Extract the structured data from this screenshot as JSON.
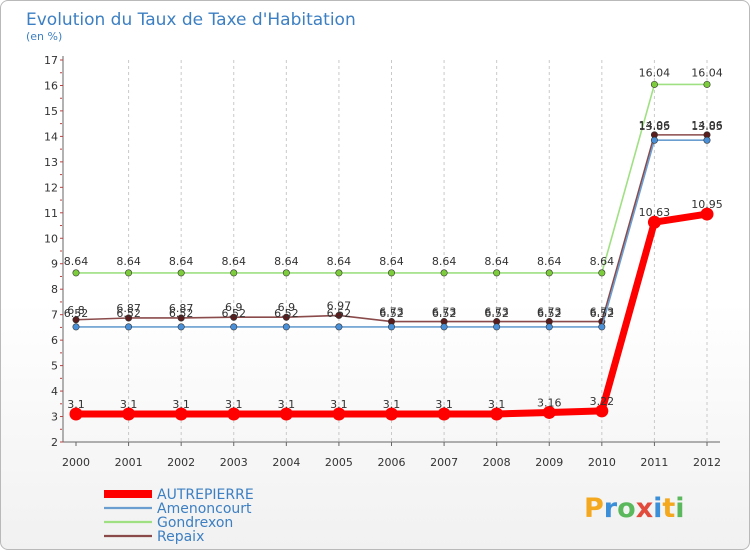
{
  "chart_data": {
    "type": "line",
    "title": "Evolution du Taux de Taxe d'Habitation",
    "subtitle": "(en %)",
    "xlabel": "",
    "ylabel": "",
    "x": [
      "2000",
      "2001",
      "2002",
      "2003",
      "2004",
      "2005",
      "2006",
      "2007",
      "2008",
      "2009",
      "2010",
      "2011",
      "2012"
    ],
    "ylim": [
      2,
      17
    ],
    "yticks": [
      "2",
      "3",
      "4",
      "5",
      "6",
      "7",
      "8",
      "9",
      "10",
      "11",
      "12",
      "13",
      "14",
      "15",
      "16",
      "17"
    ],
    "grid": "vertical dashed",
    "legend": "bottom-left",
    "series": [
      {
        "name": "AUTREPIERRE",
        "color": "#ff0000",
        "values": [
          3.1,
          3.1,
          3.1,
          3.1,
          3.1,
          3.1,
          3.1,
          3.1,
          3.1,
          3.16,
          3.22,
          10.63,
          10.95
        ],
        "labels": [
          "3.1",
          "3.1",
          "3.1",
          "3.1",
          "3.1",
          "3.1",
          "3.1",
          "3.1",
          "3.1",
          "3.16",
          "3.22",
          "10.63",
          "10.95"
        ]
      },
      {
        "name": "Amenoncourt",
        "color": "#6a9ed0",
        "values": [
          6.52,
          6.52,
          6.52,
          6.52,
          6.52,
          6.52,
          6.52,
          6.52,
          6.52,
          6.52,
          6.52,
          13.85,
          13.85
        ],
        "labels": [
          "6.52",
          "6.52",
          "6.52",
          "6.52",
          "6.52",
          "6.52",
          "6.52",
          "6.52",
          "6.52",
          "6.52",
          "6.52",
          "13.85",
          "13.85"
        ]
      },
      {
        "name": "Gondrexon",
        "color": "#9fe082",
        "values": [
          8.64,
          8.64,
          8.64,
          8.64,
          8.64,
          8.64,
          8.64,
          8.64,
          8.64,
          8.64,
          8.64,
          16.04,
          16.04
        ],
        "labels": [
          "8.64",
          "8.64",
          "8.64",
          "8.64",
          "8.64",
          "8.64",
          "8.64",
          "8.64",
          "8.64",
          "8.64",
          "8.64",
          "16.04",
          "16.04"
        ]
      },
      {
        "name": "Repaix",
        "color": "#8a4a4a",
        "values": [
          6.8,
          6.87,
          6.87,
          6.9,
          6.9,
          6.97,
          6.73,
          6.73,
          6.73,
          6.73,
          6.73,
          14.06,
          14.06
        ],
        "labels": [
          "6.8",
          "6.87",
          "6.87",
          "6.9",
          "6.9",
          "6.97",
          "6.73",
          "6.73",
          "6.73",
          "6.73",
          "6.73",
          "14.06",
          "14.06"
        ]
      }
    ]
  },
  "brand": {
    "letters": [
      "P",
      "r",
      "o",
      "x",
      "i",
      "t",
      "i"
    ],
    "colors": [
      "#f4a81d",
      "#3b8fd8",
      "#5cb85c",
      "#e24b3b",
      "#3b8fd8",
      "#f4a81d",
      "#5cb85c"
    ]
  }
}
